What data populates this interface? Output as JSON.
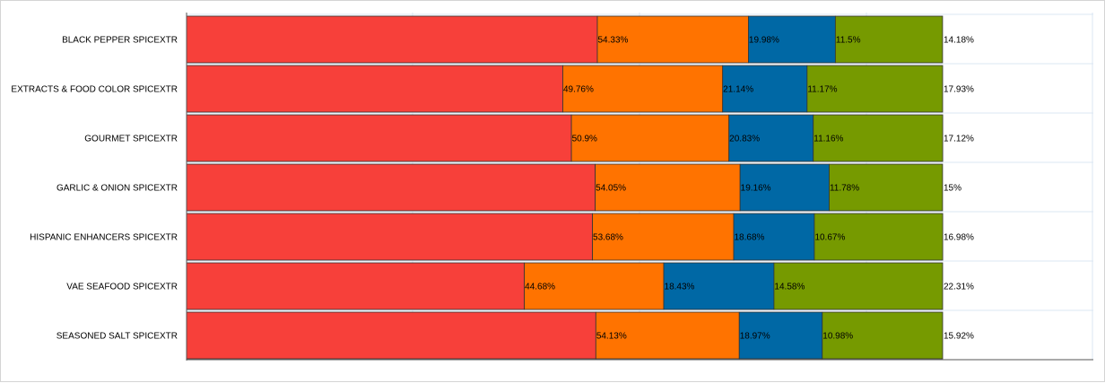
{
  "chart_data": {
    "type": "bar",
    "orientation": "horizontal",
    "stacked": "percent",
    "grid": true,
    "legend": "none",
    "categories": [
      "BLACK PEPPER SPICEXTR",
      "EXTRACTS & FOOD COLOR SPICEXTR",
      "GOURMET SPICEXTR",
      "GARLIC & ONION SPICEXTR",
      "HISPANIC ENHANCERS SPICEXTR",
      "VAE SEAFOOD SPICEXTR",
      "SEASONED SALT SPICEXTR"
    ],
    "series": [
      {
        "values": [
          54.33,
          49.76,
          50.9,
          54.05,
          53.68,
          44.68,
          54.13
        ],
        "labels": [
          "54.33%",
          "49.76%",
          "50.9%",
          "54.05%",
          "53.68%",
          "44.68%",
          "54.13%"
        ],
        "color": "#f7403a"
      },
      {
        "values": [
          19.98,
          21.14,
          20.83,
          19.16,
          18.68,
          18.43,
          18.97
        ],
        "labels": [
          "19.98%",
          "21.14%",
          "20.83%",
          "19.16%",
          "18.68%",
          "18.43%",
          "18.97%"
        ],
        "color": "#ff7300"
      },
      {
        "values": [
          11.5,
          11.17,
          11.16,
          11.78,
          10.67,
          14.58,
          10.98
        ],
        "labels": [
          "11.5%",
          "11.17%",
          "11.16%",
          "11.78%",
          "10.67%",
          "14.58%",
          "10.98%"
        ],
        "color": "#0068a5"
      },
      {
        "values": [
          14.18,
          17.93,
          17.12,
          15,
          16.98,
          22.31,
          15.92
        ],
        "labels": [
          "14.18%",
          "17.93%",
          "17.12%",
          "15%",
          "16.98%",
          "22.31%",
          "15.92%"
        ],
        "color": "#769a00"
      }
    ]
  }
}
